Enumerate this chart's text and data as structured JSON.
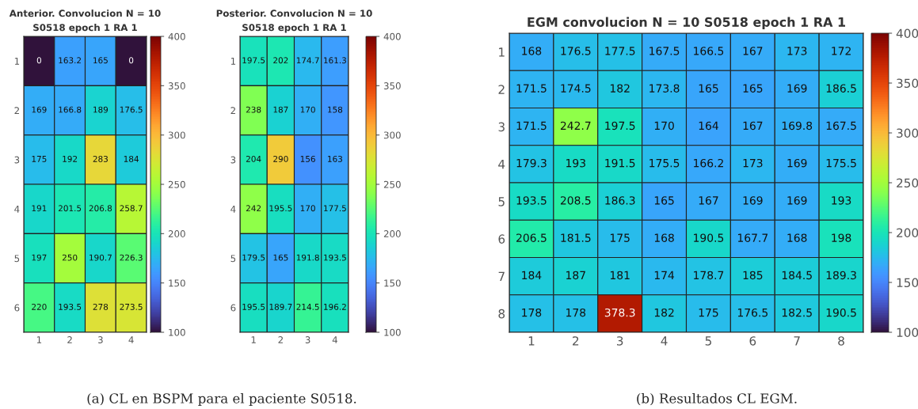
{
  "chart_data": [
    {
      "type": "heatmap",
      "title": "Anterior. Convolucion N = 10",
      "subtitle": "S0518 epoch 1 RA 1",
      "categories": [
        "1",
        "2",
        "3",
        "4"
      ],
      "y_categories": [
        "1",
        "2",
        "3",
        "4",
        "5",
        "6"
      ],
      "cells": [
        [
          0,
          163.2,
          165,
          0
        ],
        [
          169,
          166.8,
          189,
          176.5
        ],
        [
          175,
          192,
          283,
          184
        ],
        [
          191,
          201.5,
          206.8,
          258.7
        ],
        [
          197,
          250,
          190.7,
          226.3
        ],
        [
          220,
          193.5,
          278,
          273.5
        ]
      ],
      "clim": [
        100,
        400
      ],
      "cticks": [
        100,
        150,
        200,
        250,
        300,
        350,
        400
      ],
      "data_labels": true,
      "annotations": [
        "(a) CL en BSPM para el paciente S0518."
      ]
    },
    {
      "type": "heatmap",
      "title": "Posterior. Convolucion N = 10",
      "subtitle": "S0518 epoch 1 RA 1",
      "categories": [
        "1",
        "2",
        "3",
        "4"
      ],
      "y_categories": [
        "1",
        "2",
        "3",
        "4",
        "5",
        "6"
      ],
      "cells": [
        [
          197.5,
          202,
          174.7,
          161.3
        ],
        [
          238,
          187,
          170,
          158
        ],
        [
          204,
          290,
          156,
          163
        ],
        [
          242,
          195.5,
          170,
          177.5
        ],
        [
          179.5,
          165,
          191.8,
          193.5
        ],
        [
          195.5,
          189.7,
          214.5,
          196.2
        ]
      ],
      "clim": [
        100,
        400
      ],
      "cticks": [
        100,
        150,
        200,
        250,
        300,
        350,
        400
      ],
      "data_labels": true
    },
    {
      "type": "heatmap",
      "title": "EGM convolucion N = 10 S0518 epoch 1 RA 1",
      "categories": [
        "1",
        "2",
        "3",
        "4",
        "5",
        "6",
        "7",
        "8"
      ],
      "y_categories": [
        "1",
        "2",
        "3",
        "4",
        "5",
        "6",
        "7",
        "8"
      ],
      "cells": [
        [
          168,
          176.5,
          177.5,
          167.5,
          166.5,
          167,
          173,
          172
        ],
        [
          171.5,
          174.5,
          182,
          173.8,
          165,
          165,
          169,
          186.5
        ],
        [
          171.5,
          242.7,
          197.5,
          170,
          164,
          167,
          169.8,
          167.5
        ],
        [
          179.3,
          193,
          191.5,
          175.5,
          166.2,
          173,
          169,
          175.5
        ],
        [
          193.5,
          208.5,
          186.3,
          165,
          167,
          169,
          169,
          193
        ],
        [
          206.5,
          181.5,
          175,
          168,
          190.5,
          167.7,
          168,
          198
        ],
        [
          184,
          187,
          181,
          174,
          178.7,
          185,
          184.5,
          189.3
        ],
        [
          178,
          178,
          378.3,
          182,
          175,
          176.5,
          182.5,
          190.5
        ]
      ],
      "clim": [
        100,
        400
      ],
      "cticks": [
        100,
        150,
        200,
        250,
        300,
        350,
        400
      ],
      "data_labels": true,
      "annotations": [
        "(b) Resultados CL EGM."
      ]
    }
  ]
}
